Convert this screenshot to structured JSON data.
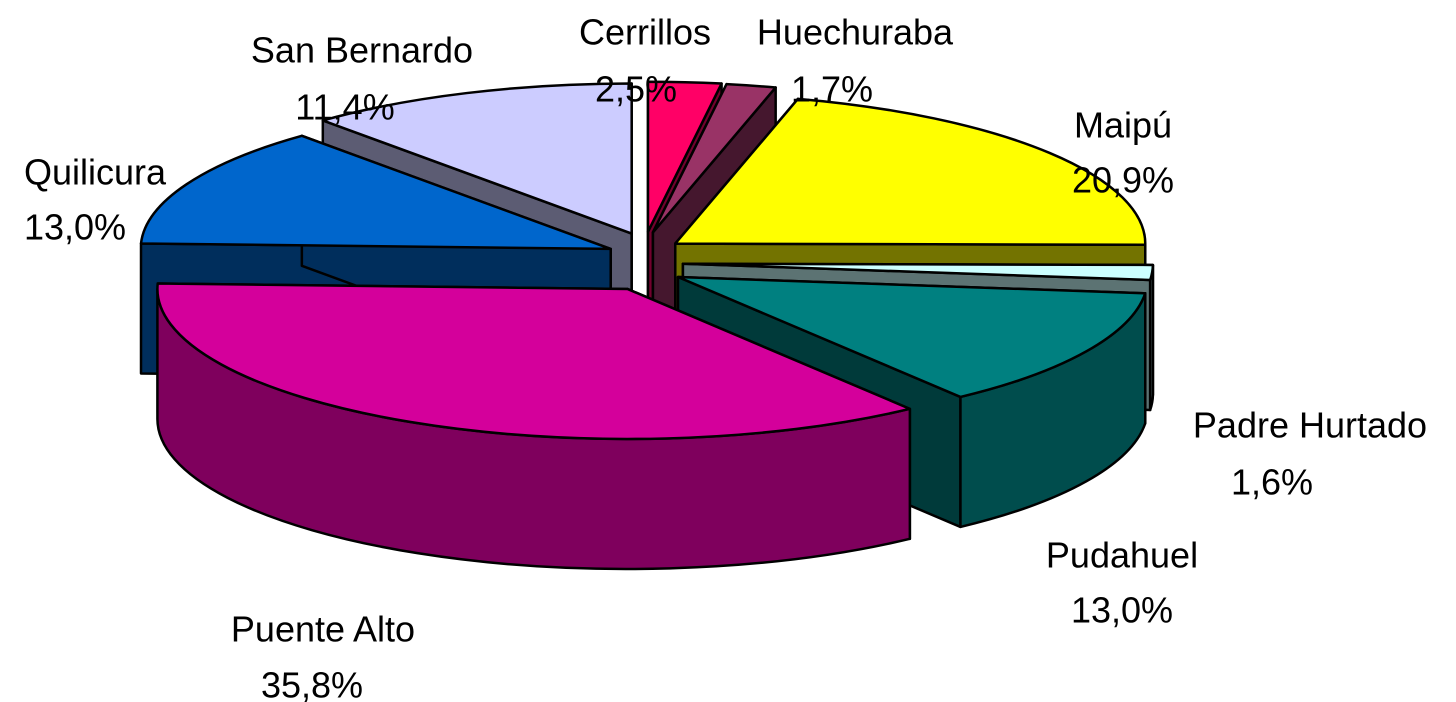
{
  "chart_data": {
    "type": "pie",
    "categories": [
      "Cerrillos",
      "Huechuraba",
      "Maipú",
      "Padre Hurtado",
      "Pudahuel",
      "Puente Alto",
      "Quilicura",
      "San Bernardo"
    ],
    "values": [
      2.5,
      1.7,
      20.9,
      1.6,
      13.0,
      35.8,
      13.0,
      11.4
    ],
    "value_labels": [
      "2,5%",
      "1,7%",
      "20,9%",
      "1,6%",
      "13,0%",
      "35,8%",
      "13,0%",
      "11,4%"
    ],
    "colors": [
      "#ff0066",
      "#993366",
      "#ffff00",
      "#ccffff",
      "#008080",
      "#d4009b",
      "#0066cc",
      "#ccccff"
    ]
  }
}
